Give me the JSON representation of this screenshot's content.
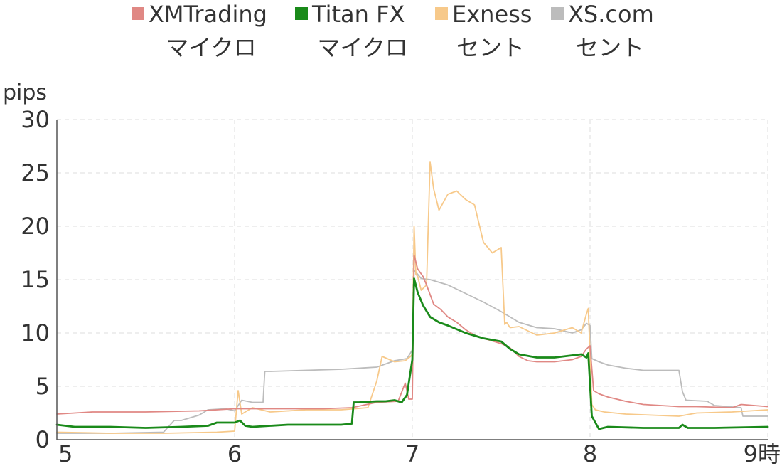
{
  "chart_data": {
    "type": "line",
    "ylabel": "pips",
    "xlabel": "時",
    "ylim": [
      0,
      30
    ],
    "xlim": [
      5,
      9
    ],
    "yticks": [
      0,
      5,
      10,
      15,
      20,
      25,
      30
    ],
    "xticks": [
      5,
      6,
      7,
      8,
      9
    ],
    "y_tick_labels": [
      "0",
      "5",
      "10",
      "15",
      "20",
      "25",
      "30"
    ],
    "x_tick_labels": [
      "5",
      "6",
      "7",
      "8",
      "9時"
    ],
    "grid": true,
    "legend_position": "top",
    "series": [
      {
        "name": "XMTrading マイクロ",
        "name_lines": [
          "XMTrading",
          "マイクロ"
        ],
        "color": "#e08884",
        "width": 1.8,
        "x": [
          5.0,
          5.2,
          5.5,
          5.8,
          6.0,
          6.2,
          6.5,
          6.66,
          6.8,
          6.92,
          6.96,
          6.98,
          7.0,
          7.01,
          7.03,
          7.06,
          7.08,
          7.12,
          7.16,
          7.2,
          7.25,
          7.3,
          7.35,
          7.4,
          7.5,
          7.55,
          7.6,
          7.65,
          7.7,
          7.8,
          7.9,
          7.95,
          7.98,
          8.0,
          8.02,
          8.05,
          8.1,
          8.2,
          8.3,
          8.4,
          8.5,
          8.6,
          8.8,
          8.85,
          9.0
        ],
        "y": [
          2.4,
          2.6,
          2.6,
          2.7,
          2.9,
          2.9,
          2.9,
          3.0,
          3.5,
          3.6,
          5.3,
          3.8,
          3.8,
          17.3,
          16.0,
          15.3,
          14.5,
          12.7,
          12.2,
          11.5,
          11.0,
          10.3,
          9.8,
          9.5,
          9.0,
          8.6,
          7.8,
          7.4,
          7.3,
          7.3,
          7.5,
          7.8,
          8.5,
          8.8,
          4.6,
          4.3,
          4.0,
          3.6,
          3.3,
          3.2,
          3.1,
          3.1,
          3.0,
          3.3,
          3.1
        ]
      },
      {
        "name": "Titan FX マイクロ",
        "name_lines": [
          "Titan FX",
          "マイクロ"
        ],
        "color": "#1a8a1a",
        "width": 2.8,
        "x": [
          5.0,
          5.1,
          5.3,
          5.5,
          5.7,
          5.85,
          5.9,
          6.0,
          6.03,
          6.06,
          6.1,
          6.2,
          6.3,
          6.4,
          6.5,
          6.6,
          6.66,
          6.67,
          6.7,
          6.8,
          6.85,
          6.9,
          6.94,
          6.97,
          7.0,
          7.01,
          7.03,
          7.06,
          7.1,
          7.15,
          7.2,
          7.3,
          7.4,
          7.5,
          7.55,
          7.6,
          7.7,
          7.8,
          7.9,
          7.95,
          7.98,
          7.99,
          8.01,
          8.05,
          8.1,
          8.3,
          8.5,
          8.52,
          8.55,
          8.7,
          9.0
        ],
        "y": [
          1.4,
          1.2,
          1.2,
          1.1,
          1.2,
          1.3,
          1.6,
          1.6,
          1.8,
          1.3,
          1.2,
          1.3,
          1.4,
          1.4,
          1.4,
          1.4,
          1.5,
          3.5,
          3.5,
          3.6,
          3.6,
          3.7,
          3.5,
          4.2,
          7.5,
          15.1,
          13.8,
          12.6,
          11.5,
          11.0,
          10.7,
          10.0,
          9.5,
          9.2,
          8.5,
          8.0,
          7.7,
          7.7,
          7.9,
          8.0,
          7.7,
          8.1,
          2.2,
          1.0,
          1.2,
          1.1,
          1.1,
          1.4,
          1.1,
          1.1,
          1.2
        ]
      },
      {
        "name": "Exness セント",
        "name_lines": [
          "Exness",
          "セント"
        ],
        "color": "#f7c98a",
        "width": 1.8,
        "x": [
          5.0,
          5.3,
          5.6,
          5.9,
          6.0,
          6.02,
          6.04,
          6.1,
          6.2,
          6.4,
          6.6,
          6.75,
          6.8,
          6.83,
          6.9,
          6.96,
          6.99,
          7.0,
          7.01,
          7.02,
          7.03,
          7.05,
          7.08,
          7.1,
          7.12,
          7.15,
          7.2,
          7.25,
          7.3,
          7.35,
          7.4,
          7.45,
          7.5,
          7.52,
          7.53,
          7.55,
          7.6,
          7.7,
          7.8,
          7.9,
          7.95,
          7.98,
          7.99,
          8.0,
          8.01,
          8.03,
          8.08,
          8.2,
          8.5,
          8.6,
          8.8,
          9.0
        ],
        "y": [
          0.7,
          0.6,
          0.6,
          0.7,
          0.8,
          4.6,
          2.4,
          3.0,
          2.6,
          2.8,
          2.8,
          3.0,
          5.5,
          7.8,
          7.3,
          7.4,
          7.8,
          8.0,
          20.0,
          15.5,
          15.3,
          14.0,
          14.5,
          26.0,
          23.5,
          21.5,
          23.0,
          23.3,
          22.5,
          22.0,
          18.5,
          17.5,
          18.0,
          10.8,
          11.0,
          10.5,
          10.6,
          9.8,
          10.0,
          10.5,
          10.0,
          11.8,
          12.3,
          8.0,
          3.3,
          2.8,
          2.6,
          2.4,
          2.2,
          2.5,
          2.6,
          2.8
        ]
      },
      {
        "name": "XS.com セント",
        "name_lines": [
          "XS.com",
          "セント"
        ],
        "color": "#bcbcbc",
        "width": 1.8,
        "x": [
          5.0,
          5.3,
          5.6,
          5.66,
          5.7,
          5.8,
          5.85,
          5.95,
          6.0,
          6.04,
          6.1,
          6.16,
          6.17,
          6.2,
          6.4,
          6.6,
          6.8,
          6.9,
          6.97,
          7.0,
          7.01,
          7.05,
          7.1,
          7.2,
          7.3,
          7.4,
          7.5,
          7.6,
          7.7,
          7.8,
          7.9,
          7.95,
          7.98,
          8.0,
          8.01,
          8.05,
          8.1,
          8.2,
          8.3,
          8.5,
          8.52,
          8.54,
          8.66,
          8.7,
          8.85,
          8.86,
          9.0
        ],
        "y": [
          0.6,
          0.6,
          0.7,
          1.8,
          1.8,
          2.3,
          2.8,
          2.9,
          2.7,
          3.7,
          3.5,
          3.5,
          6.4,
          6.4,
          6.5,
          6.6,
          6.8,
          7.4,
          7.6,
          8.4,
          15.9,
          15.1,
          15.0,
          14.5,
          13.7,
          12.9,
          12.0,
          11.0,
          10.5,
          10.4,
          10.0,
          10.3,
          10.9,
          10.7,
          7.6,
          7.3,
          7.0,
          6.7,
          6.5,
          6.5,
          4.5,
          3.7,
          3.6,
          3.2,
          3.0,
          2.2,
          2.2
        ]
      }
    ]
  }
}
